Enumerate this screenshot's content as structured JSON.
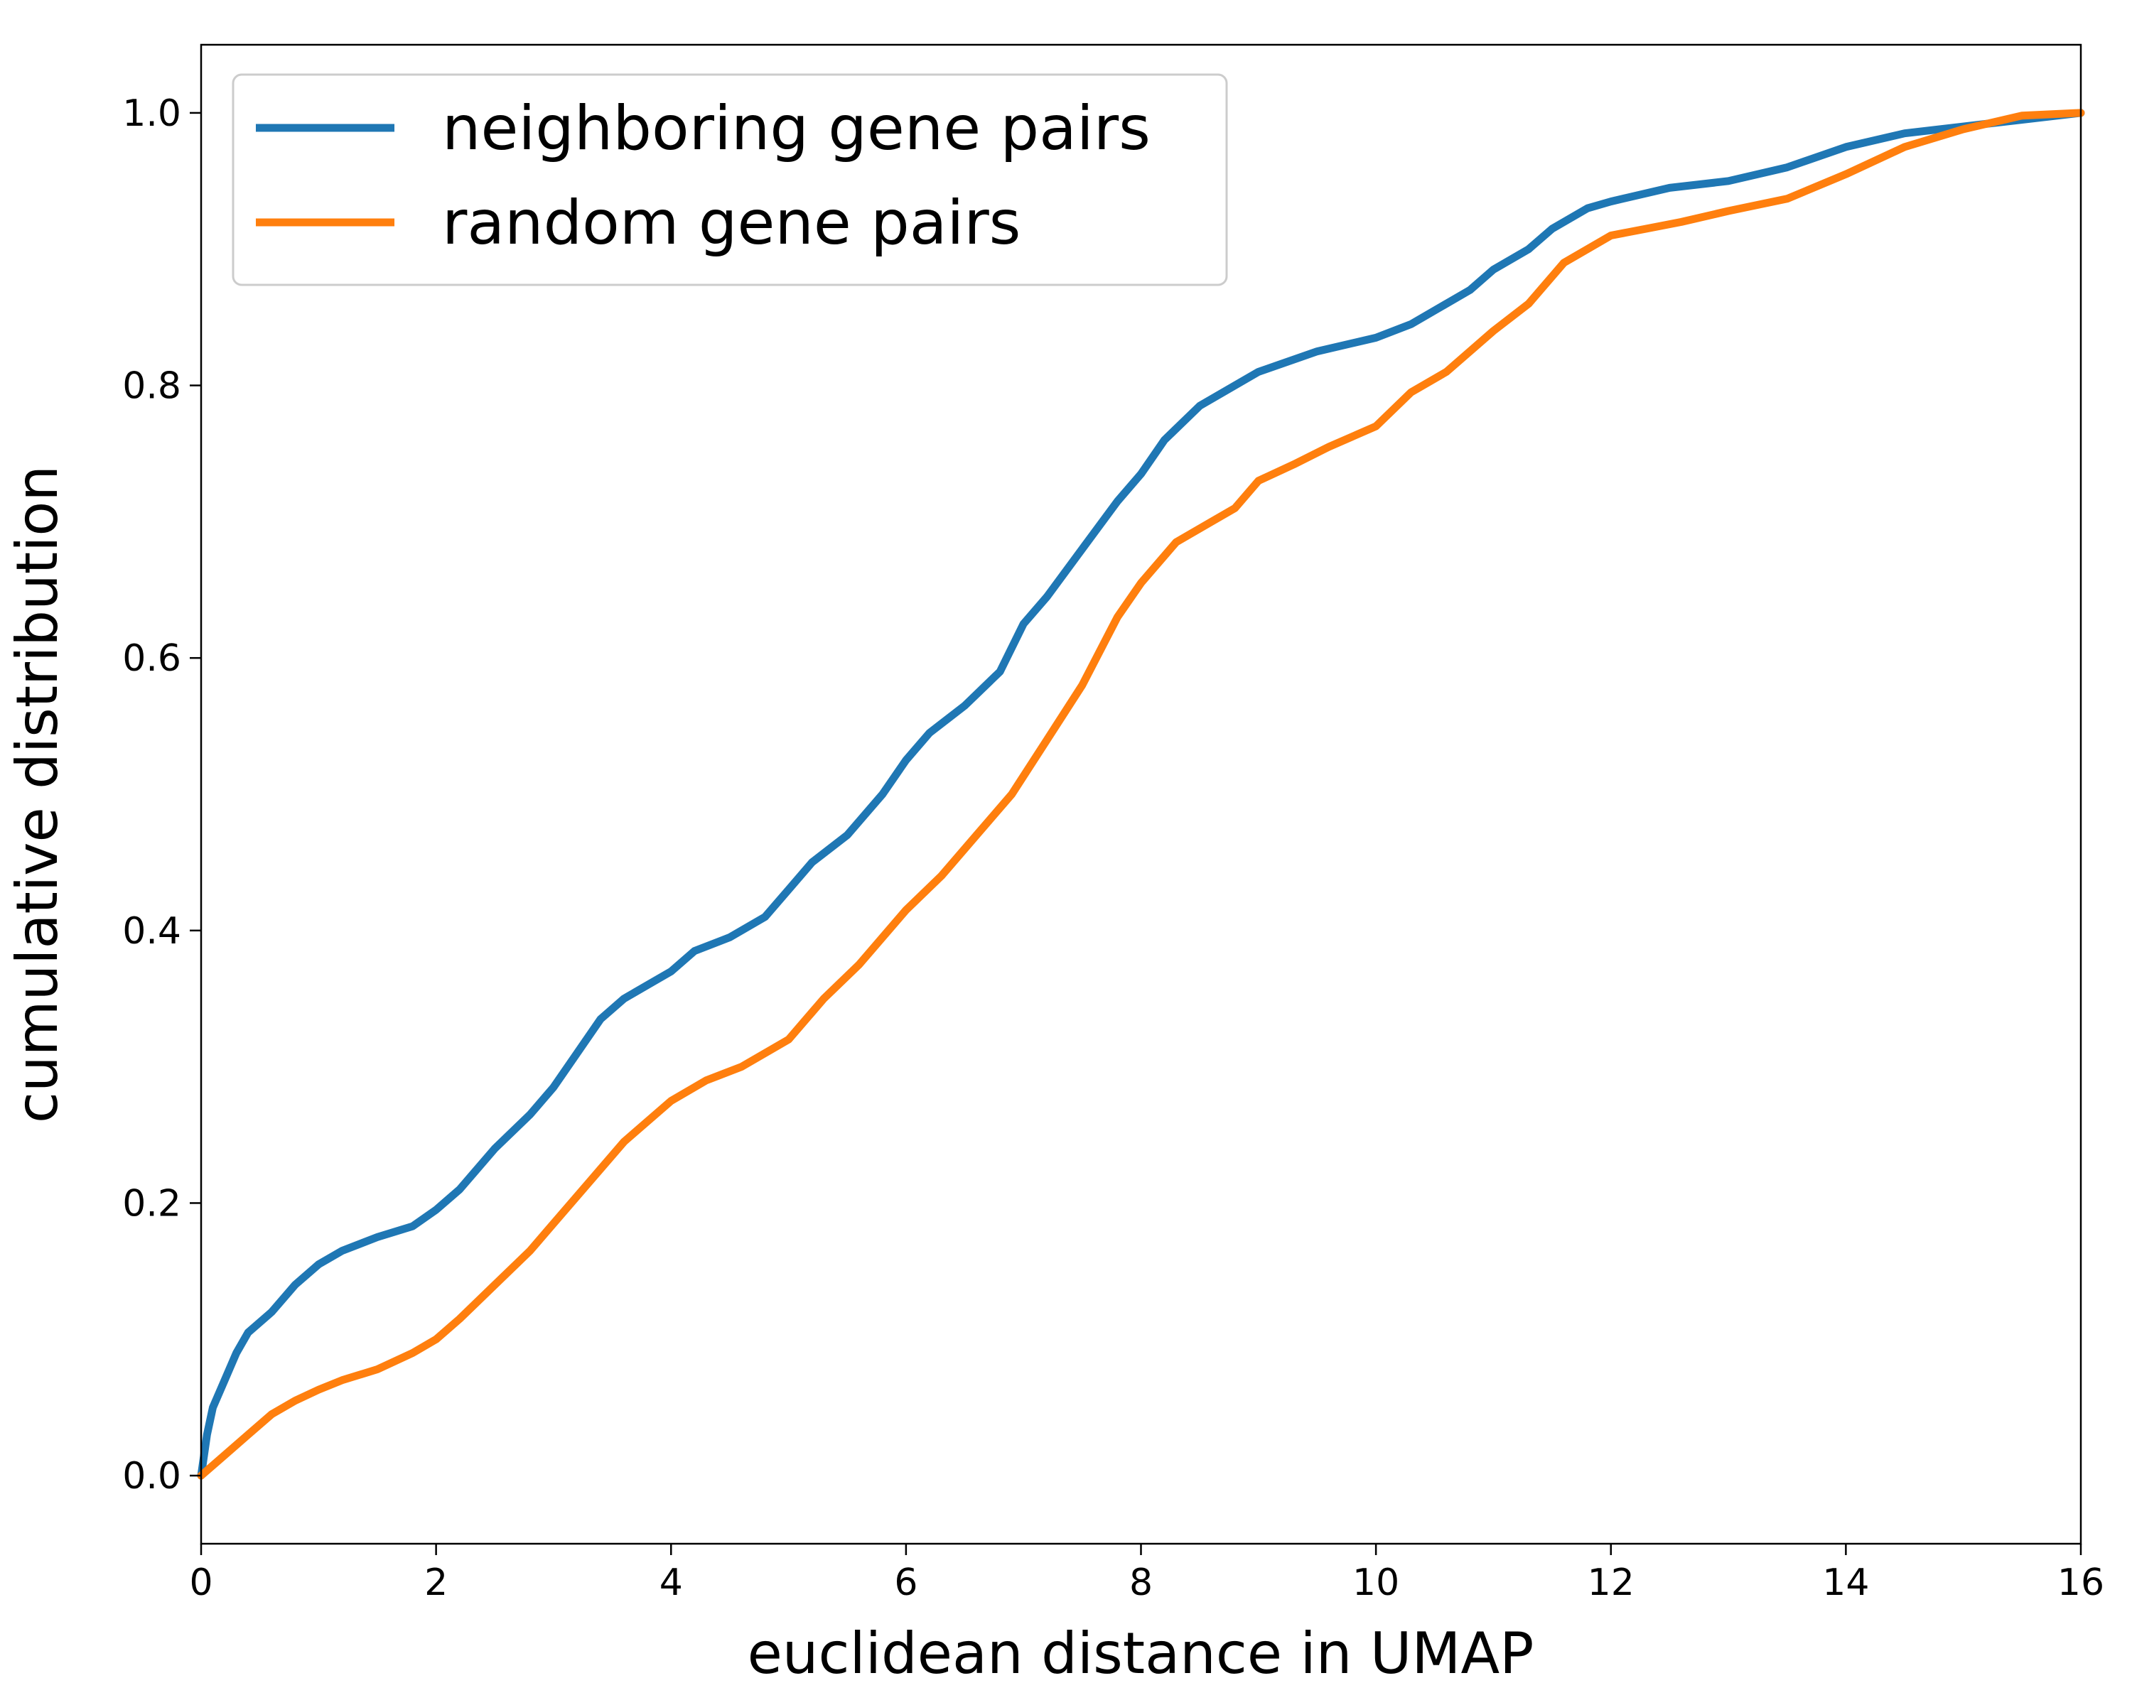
{
  "chart_data": {
    "type": "line",
    "xlabel": "euclidean distance in UMAP",
    "ylabel": "cumulative distribution",
    "xlim": [
      0,
      16
    ],
    "ylim": [
      -0.05,
      1.05
    ],
    "xticks": [
      0,
      2,
      4,
      6,
      8,
      10,
      12,
      14,
      16
    ],
    "yticks": [
      0.0,
      0.2,
      0.4,
      0.6,
      0.8,
      1.0
    ],
    "xtick_labels": [
      "0",
      "2",
      "4",
      "6",
      "8",
      "10",
      "12",
      "14",
      "16"
    ],
    "ytick_labels": [
      "0.0",
      "0.2",
      "0.4",
      "0.6",
      "0.8",
      "1.0"
    ],
    "grid": false,
    "legend_position": "top-left",
    "series": [
      {
        "name": "neighboring gene pairs",
        "color": "#1f77b4",
        "points": [
          [
            0,
            0
          ],
          [
            0.05,
            0.03
          ],
          [
            0.1,
            0.05
          ],
          [
            0.2,
            0.07
          ],
          [
            0.3,
            0.09
          ],
          [
            0.4,
            0.105
          ],
          [
            0.6,
            0.12
          ],
          [
            0.8,
            0.14
          ],
          [
            1.0,
            0.155
          ],
          [
            1.2,
            0.165
          ],
          [
            1.5,
            0.175
          ],
          [
            1.8,
            0.183
          ],
          [
            2.0,
            0.195
          ],
          [
            2.2,
            0.21
          ],
          [
            2.5,
            0.24
          ],
          [
            2.8,
            0.265
          ],
          [
            3.0,
            0.285
          ],
          [
            3.2,
            0.31
          ],
          [
            3.4,
            0.335
          ],
          [
            3.6,
            0.35
          ],
          [
            3.8,
            0.36
          ],
          [
            4.0,
            0.37
          ],
          [
            4.2,
            0.385
          ],
          [
            4.5,
            0.395
          ],
          [
            4.8,
            0.41
          ],
          [
            5.0,
            0.43
          ],
          [
            5.2,
            0.45
          ],
          [
            5.5,
            0.47
          ],
          [
            5.8,
            0.5
          ],
          [
            6.0,
            0.525
          ],
          [
            6.2,
            0.545
          ],
          [
            6.5,
            0.565
          ],
          [
            6.8,
            0.59
          ],
          [
            7.0,
            0.625
          ],
          [
            7.2,
            0.645
          ],
          [
            7.5,
            0.68
          ],
          [
            7.8,
            0.715
          ],
          [
            8.0,
            0.735
          ],
          [
            8.2,
            0.76
          ],
          [
            8.5,
            0.785
          ],
          [
            8.8,
            0.8
          ],
          [
            9.0,
            0.81
          ],
          [
            9.5,
            0.825
          ],
          [
            10.0,
            0.835
          ],
          [
            10.3,
            0.845
          ],
          [
            10.5,
            0.855
          ],
          [
            10.8,
            0.87
          ],
          [
            11.0,
            0.885
          ],
          [
            11.3,
            0.9
          ],
          [
            11.5,
            0.915
          ],
          [
            11.8,
            0.93
          ],
          [
            12.0,
            0.935
          ],
          [
            12.5,
            0.945
          ],
          [
            13.0,
            0.95
          ],
          [
            13.5,
            0.96
          ],
          [
            14.0,
            0.975
          ],
          [
            14.5,
            0.985
          ],
          [
            15.0,
            0.99
          ],
          [
            15.5,
            0.995
          ],
          [
            16.0,
            1.0
          ]
        ]
      },
      {
        "name": "random gene pairs",
        "color": "#ff7f0e",
        "points": [
          [
            0,
            0
          ],
          [
            0.2,
            0.015
          ],
          [
            0.4,
            0.03
          ],
          [
            0.6,
            0.045
          ],
          [
            0.8,
            0.055
          ],
          [
            1.0,
            0.063
          ],
          [
            1.2,
            0.07
          ],
          [
            1.5,
            0.078
          ],
          [
            1.8,
            0.09
          ],
          [
            2.0,
            0.1
          ],
          [
            2.2,
            0.115
          ],
          [
            2.5,
            0.14
          ],
          [
            2.8,
            0.165
          ],
          [
            3.0,
            0.185
          ],
          [
            3.3,
            0.215
          ],
          [
            3.6,
            0.245
          ],
          [
            4.0,
            0.275
          ],
          [
            4.3,
            0.29
          ],
          [
            4.6,
            0.3
          ],
          [
            5.0,
            0.32
          ],
          [
            5.3,
            0.35
          ],
          [
            5.6,
            0.375
          ],
          [
            6.0,
            0.415
          ],
          [
            6.3,
            0.44
          ],
          [
            6.6,
            0.47
          ],
          [
            6.9,
            0.5
          ],
          [
            7.2,
            0.54
          ],
          [
            7.5,
            0.58
          ],
          [
            7.8,
            0.63
          ],
          [
            8.0,
            0.655
          ],
          [
            8.3,
            0.685
          ],
          [
            8.6,
            0.7
          ],
          [
            8.8,
            0.71
          ],
          [
            9.0,
            0.73
          ],
          [
            9.3,
            0.742
          ],
          [
            9.6,
            0.755
          ],
          [
            10.0,
            0.77
          ],
          [
            10.3,
            0.795
          ],
          [
            10.6,
            0.81
          ],
          [
            11.0,
            0.84
          ],
          [
            11.3,
            0.86
          ],
          [
            11.6,
            0.89
          ],
          [
            12.0,
            0.91
          ],
          [
            12.3,
            0.915
          ],
          [
            12.6,
            0.92
          ],
          [
            13.0,
            0.928
          ],
          [
            13.5,
            0.937
          ],
          [
            14.0,
            0.955
          ],
          [
            14.5,
            0.975
          ],
          [
            15.0,
            0.988
          ],
          [
            15.5,
            0.998
          ],
          [
            16.0,
            1.0
          ]
        ]
      }
    ]
  }
}
